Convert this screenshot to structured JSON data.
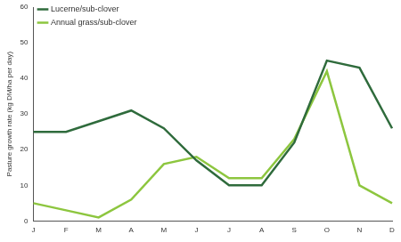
{
  "chart_data": {
    "type": "line",
    "y_label": "Pasture growth rate (kg DM/ha per day)",
    "categories": [
      "J",
      "F",
      "M",
      "A",
      "M",
      "J",
      "J",
      "A",
      "S",
      "O",
      "N",
      "D"
    ],
    "series": [
      {
        "name": "Lucerne/sub-clover",
        "color": "#2f6b3c",
        "values": [
          25,
          25,
          28,
          31,
          26,
          17,
          10,
          10,
          22,
          45,
          43,
          26
        ]
      },
      {
        "name": "Annual grass/sub-clover",
        "color": "#8dc63f",
        "values": [
          5,
          3,
          1,
          6,
          16,
          18,
          12,
          12,
          23,
          42,
          10,
          5
        ]
      }
    ],
    "ylim": [
      0,
      60
    ],
    "yticks": [
      0,
      10,
      20,
      30,
      40,
      50,
      60
    ],
    "grid": false,
    "legend": "upper left"
  }
}
